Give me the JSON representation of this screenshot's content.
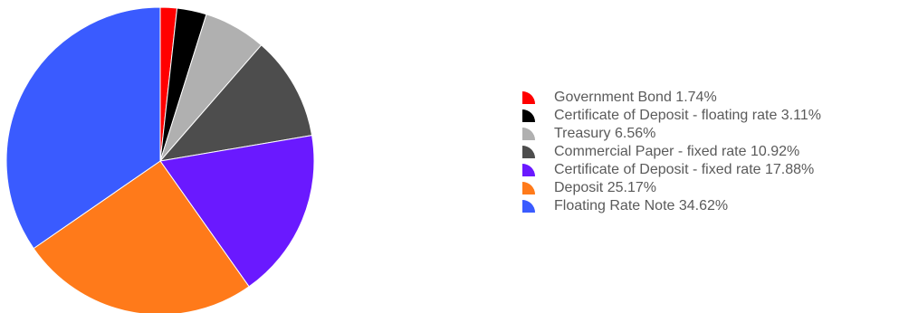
{
  "chart_data": {
    "type": "pie",
    "start_angle_deg": 0,
    "direction": "clockwise",
    "legend_position": "right",
    "slices": [
      {
        "label": "Government Bond",
        "value": 1.74,
        "value_label": "1.74%",
        "color": "#ff0000"
      },
      {
        "label": "Certificate of Deposit - floating rate",
        "value": 3.11,
        "value_label": "3.11%",
        "color": "#000000"
      },
      {
        "label": "Treasury",
        "value": 6.56,
        "value_label": "6.56%",
        "color": "#b0b0b0"
      },
      {
        "label": "Commercial Paper - fixed rate",
        "value": 10.92,
        "value_label": "10.92%",
        "color": "#4d4d4d"
      },
      {
        "label": "Certificate of Deposit - fixed rate",
        "value": 17.88,
        "value_label": "17.88%",
        "color": "#6a19ff"
      },
      {
        "label": "Deposit",
        "value": 25.17,
        "value_label": "25.17%",
        "color": "#ff7a1a"
      },
      {
        "label": "Floating Rate Note",
        "value": 34.62,
        "value_label": "34.62%",
        "color": "#3a5bff"
      }
    ]
  }
}
